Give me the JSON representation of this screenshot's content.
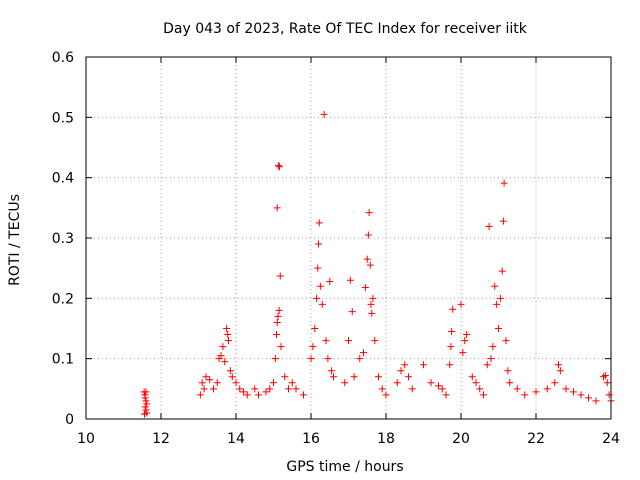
{
  "chart_data": {
    "type": "scatter",
    "title": "Day 043 of 2023, Rate Of TEC Index for receiver iitk",
    "xlabel": "GPS time / hours",
    "ylabel": "ROTI / TECUs",
    "xlim": [
      10,
      24
    ],
    "ylim": [
      0,
      0.6
    ],
    "xticks": [
      "10",
      "12",
      "14",
      "16",
      "18",
      "20",
      "22",
      "24"
    ],
    "yticks": [
      "0",
      "0.1",
      "0.2",
      "0.3",
      "0.4",
      "0.5",
      "0.6"
    ],
    "grid": true,
    "marker": "+",
    "color": "#ff0000",
    "series": [
      {
        "points": [
          [
            11.55,
            0.045
          ],
          [
            11.57,
            0.04
          ],
          [
            11.58,
            0.035
          ],
          [
            11.6,
            0.03
          ],
          [
            11.62,
            0.025
          ],
          [
            11.58,
            0.02
          ],
          [
            11.6,
            0.015
          ],
          [
            11.62,
            0.01
          ],
          [
            11.56,
            0.008
          ],
          [
            11.6,
            0.045
          ],
          [
            13.05,
            0.04
          ],
          [
            13.1,
            0.06
          ],
          [
            13.15,
            0.05
          ],
          [
            13.2,
            0.07
          ],
          [
            13.3,
            0.065
          ],
          [
            13.4,
            0.05
          ],
          [
            13.5,
            0.06
          ],
          [
            13.55,
            0.1
          ],
          [
            13.6,
            0.105
          ],
          [
            13.65,
            0.12
          ],
          [
            13.7,
            0.095
          ],
          [
            13.75,
            0.15
          ],
          [
            13.78,
            0.14
          ],
          [
            13.8,
            0.13
          ],
          [
            13.85,
            0.08
          ],
          [
            13.9,
            0.07
          ],
          [
            14.0,
            0.06
          ],
          [
            14.1,
            0.05
          ],
          [
            14.2,
            0.045
          ],
          [
            14.3,
            0.04
          ],
          [
            14.5,
            0.05
          ],
          [
            14.6,
            0.04
          ],
          [
            14.8,
            0.045
          ],
          [
            14.9,
            0.05
          ],
          [
            15.0,
            0.06
          ],
          [
            15.05,
            0.1
          ],
          [
            15.08,
            0.14
          ],
          [
            15.1,
            0.16
          ],
          [
            15.12,
            0.17
          ],
          [
            15.15,
            0.18
          ],
          [
            15.1,
            0.35
          ],
          [
            15.13,
            0.42
          ],
          [
            15.16,
            0.418
          ],
          [
            15.18,
            0.237
          ],
          [
            15.2,
            0.12
          ],
          [
            15.3,
            0.07
          ],
          [
            15.4,
            0.05
          ],
          [
            15.5,
            0.06
          ],
          [
            15.6,
            0.05
          ],
          [
            15.8,
            0.04
          ],
          [
            16.0,
            0.1
          ],
          [
            16.05,
            0.12
          ],
          [
            16.1,
            0.15
          ],
          [
            16.15,
            0.2
          ],
          [
            16.18,
            0.25
          ],
          [
            16.2,
            0.29
          ],
          [
            16.22,
            0.325
          ],
          [
            16.25,
            0.22
          ],
          [
            16.3,
            0.19
          ],
          [
            16.35,
            0.505
          ],
          [
            16.4,
            0.13
          ],
          [
            16.45,
            0.1
          ],
          [
            16.5,
            0.228
          ],
          [
            16.55,
            0.08
          ],
          [
            16.6,
            0.07
          ],
          [
            16.9,
            0.06
          ],
          [
            17.0,
            0.13
          ],
          [
            17.05,
            0.23
          ],
          [
            17.1,
            0.178
          ],
          [
            17.15,
            0.07
          ],
          [
            17.3,
            0.1
          ],
          [
            17.4,
            0.11
          ],
          [
            17.45,
            0.218
          ],
          [
            17.5,
            0.265
          ],
          [
            17.53,
            0.305
          ],
          [
            17.55,
            0.342
          ],
          [
            17.58,
            0.255
          ],
          [
            17.6,
            0.19
          ],
          [
            17.62,
            0.175
          ],
          [
            17.65,
            0.2
          ],
          [
            17.7,
            0.13
          ],
          [
            17.8,
            0.07
          ],
          [
            17.9,
            0.05
          ],
          [
            18.0,
            0.04
          ],
          [
            18.3,
            0.06
          ],
          [
            18.4,
            0.08
          ],
          [
            18.5,
            0.09
          ],
          [
            18.6,
            0.07
          ],
          [
            18.7,
            0.05
          ],
          [
            19.0,
            0.09
          ],
          [
            19.2,
            0.06
          ],
          [
            19.4,
            0.055
          ],
          [
            19.5,
            0.05
          ],
          [
            19.6,
            0.04
          ],
          [
            19.7,
            0.09
          ],
          [
            19.73,
            0.12
          ],
          [
            19.75,
            0.145
          ],
          [
            19.78,
            0.182
          ],
          [
            20.0,
            0.19
          ],
          [
            20.05,
            0.11
          ],
          [
            20.1,
            0.13
          ],
          [
            20.15,
            0.14
          ],
          [
            20.3,
            0.07
          ],
          [
            20.4,
            0.06
          ],
          [
            20.5,
            0.05
          ],
          [
            20.6,
            0.04
          ],
          [
            20.7,
            0.09
          ],
          [
            20.75,
            0.319
          ],
          [
            20.8,
            0.1
          ],
          [
            20.85,
            0.12
          ],
          [
            20.9,
            0.22
          ],
          [
            20.95,
            0.19
          ],
          [
            21.0,
            0.15
          ],
          [
            21.05,
            0.2
          ],
          [
            21.1,
            0.245
          ],
          [
            21.13,
            0.328
          ],
          [
            21.15,
            0.391
          ],
          [
            21.2,
            0.13
          ],
          [
            21.25,
            0.08
          ],
          [
            21.3,
            0.06
          ],
          [
            21.5,
            0.05
          ],
          [
            21.7,
            0.04
          ],
          [
            22.0,
            0.045
          ],
          [
            22.3,
            0.05
          ],
          [
            22.5,
            0.06
          ],
          [
            22.6,
            0.09
          ],
          [
            22.65,
            0.08
          ],
          [
            22.8,
            0.05
          ],
          [
            23.0,
            0.045
          ],
          [
            23.2,
            0.04
          ],
          [
            23.4,
            0.035
          ],
          [
            23.6,
            0.03
          ],
          [
            23.8,
            0.07
          ],
          [
            23.85,
            0.072
          ],
          [
            23.9,
            0.06
          ],
          [
            23.95,
            0.04
          ],
          [
            24.0,
            0.03
          ]
        ]
      }
    ]
  }
}
